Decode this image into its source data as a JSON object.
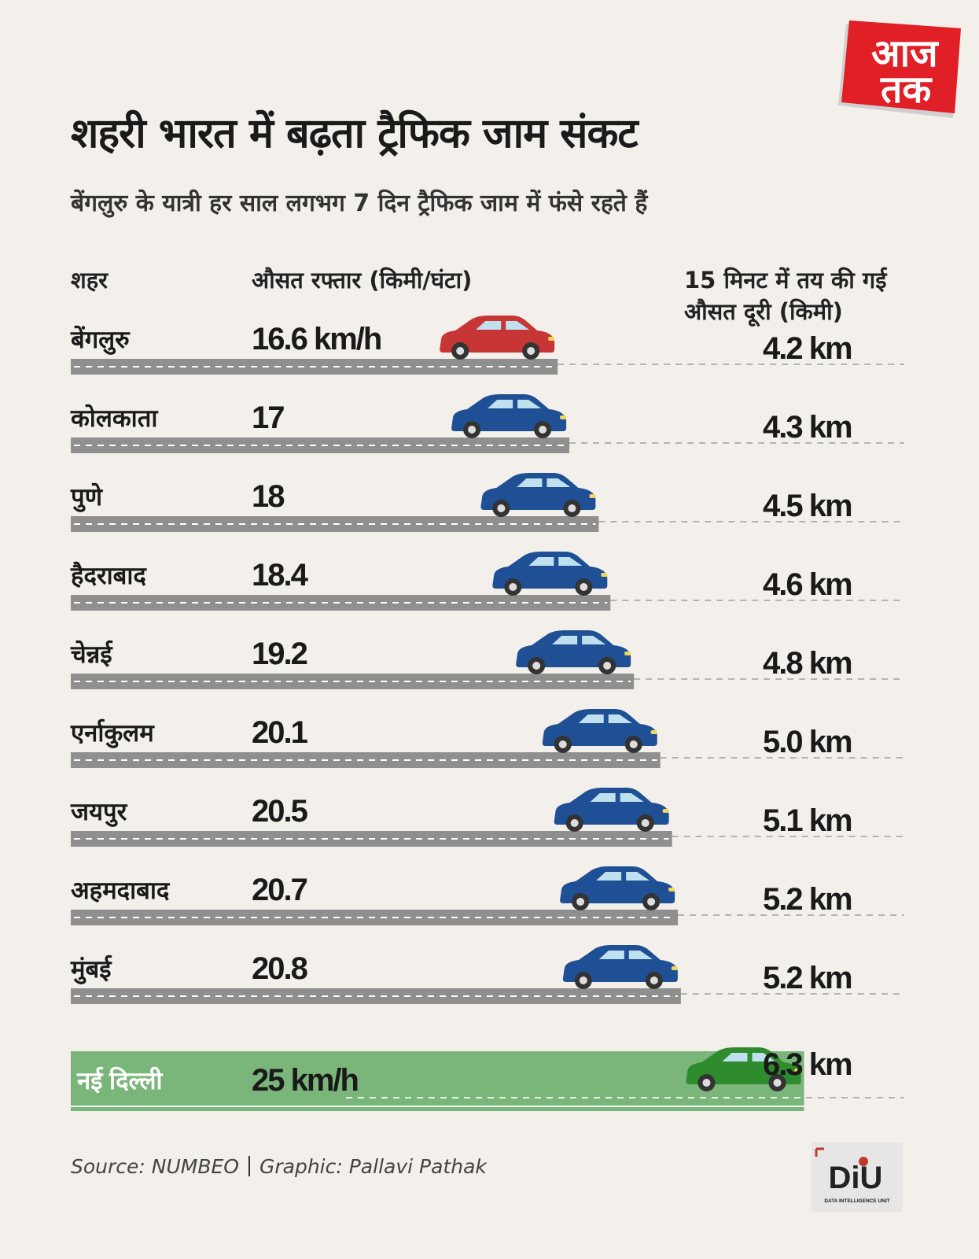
{
  "header": {
    "title": "शहरी भारत में बढ़ता ट्रैफिक जाम संकट",
    "subtitle": "बेंगलुरु के यात्री हर साल लगभग 7 दिन ट्रैफिक जाम में फंसे रहते हैं",
    "logo_text_top": "आज",
    "logo_text_bottom": "तक"
  },
  "columns": {
    "city": "शहर",
    "speed": "औसत रफ्तार (किमी/घंटा)",
    "distance_line1": "15 मिनट में तय की गई",
    "distance_line2": "औसत दूरी (किमी)"
  },
  "footer": {
    "source": "Source: NUMBEO",
    "graphic": "Graphic: Pallavi Pathak",
    "diu_logo": "DiU",
    "diu_tagline": "DATA INTELLIGENCE UNIT"
  },
  "colors": {
    "background": "#f3efea",
    "road": "#8f8f8f",
    "highlight_road": "#7ab57a",
    "car_blue": "#1f4f94",
    "car_red": "#c73535",
    "car_green": "#2e8b2e",
    "logo_red": "#e01f26"
  },
  "chart_data": {
    "type": "bar",
    "categories": [
      "बेंगलुरु",
      "कोलकाता",
      "पुणे",
      "हैदराबाद",
      "चेन्नई",
      "एर्नाकुलम",
      "जयपुर",
      "अहमदाबाद",
      "मुंबई",
      "नई दिल्ली"
    ],
    "series": [
      {
        "values": [
          16.6,
          17,
          18,
          18.4,
          19.2,
          20.1,
          20.5,
          20.7,
          20.8,
          25
        ]
      },
      {
        "values": [
          4.2,
          4.3,
          4.5,
          4.6,
          4.8,
          5.0,
          5.1,
          5.2,
          5.2,
          6.3
        ]
      }
    ],
    "speed_labels": [
      "16.6 km/h",
      "17",
      "18",
      "18.4",
      "19.2",
      "20.1",
      "20.5",
      "20.7",
      "20.8",
      "25 km/h"
    ],
    "distance_labels": [
      "4.2 km",
      "4.3 km",
      "4.5 km",
      "4.6 km",
      "4.8 km",
      "5.0 km",
      "5.1 km",
      "5.2 km",
      "5.2 km",
      "6.3 km"
    ],
    "car_colors": [
      "red",
      "blue",
      "blue",
      "blue",
      "blue",
      "blue",
      "blue",
      "blue",
      "blue",
      "green"
    ],
    "highlight": "नई दिल्ली",
    "xlim": [
      0,
      25
    ]
  }
}
